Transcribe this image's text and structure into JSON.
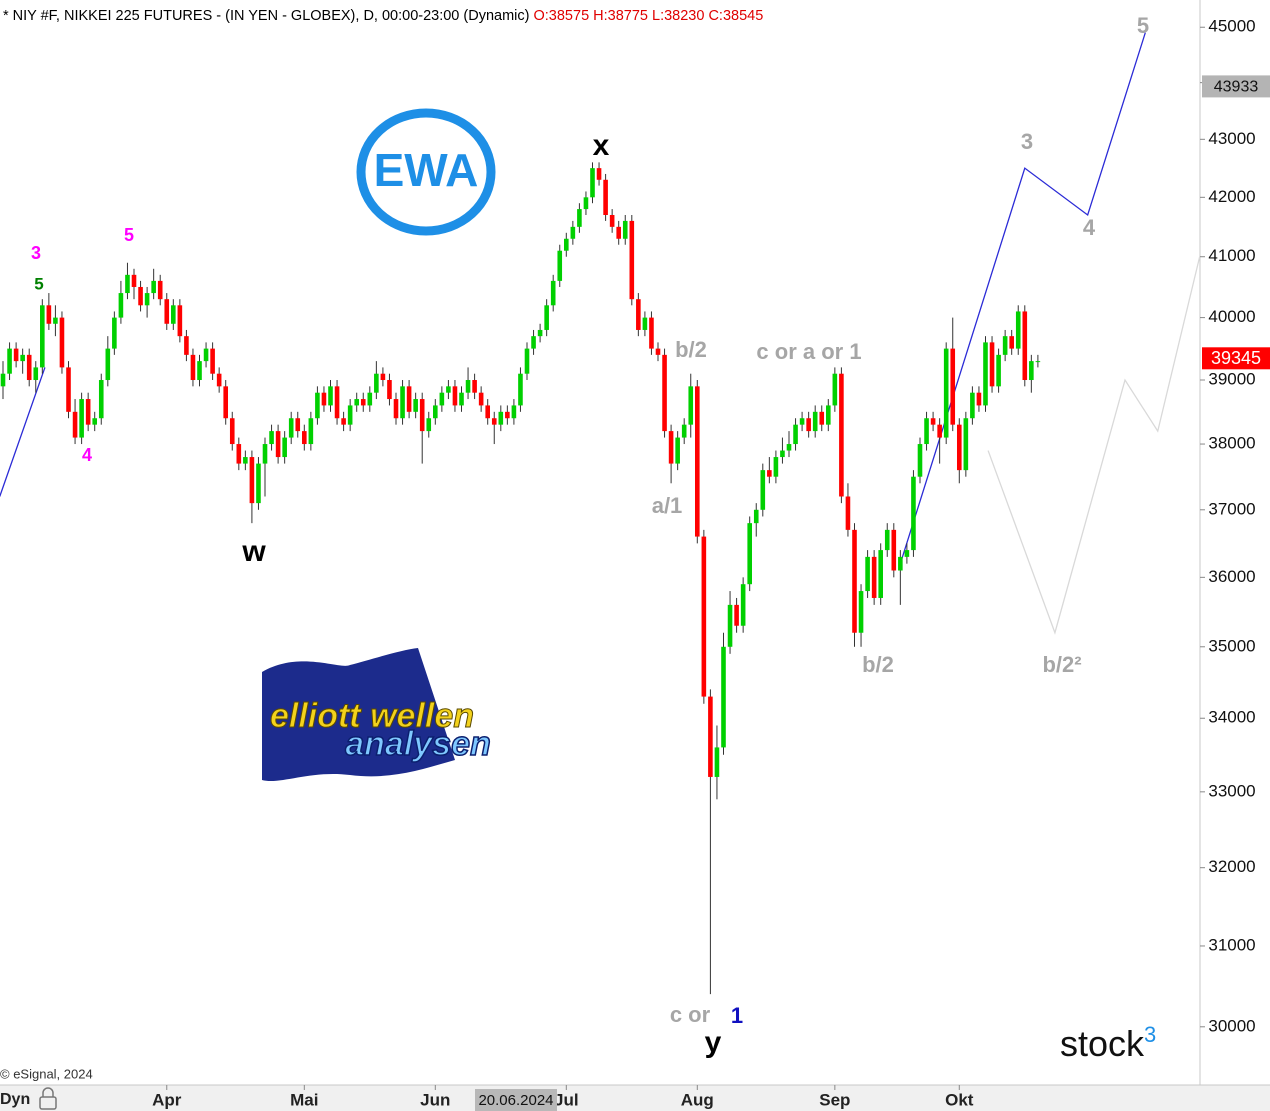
{
  "chart_data": {
    "type": "candlestick",
    "header": "* NIY #F, NIKKEI 225 FUTURES - (IN YEN - GLOBEX), D, 00:00-23:00 (Dynamic)",
    "ohlc_text": "O:38575 H:38775 L:38230 C:38545",
    "log_scale": true,
    "up_color": "#00d000",
    "down_color": "#ff0000",
    "ylim": [
      29300,
      45500
    ],
    "yticks": [
      30000,
      31000,
      32000,
      33000,
      34000,
      35000,
      36000,
      37000,
      38000,
      39000,
      40000,
      41000,
      42000,
      43000,
      44000,
      45000
    ],
    "xlim": [
      -0.46,
      182.75
    ],
    "xticks": [
      {
        "value": 25,
        "label": "Apr"
      },
      {
        "value": 46,
        "label": "Mai"
      },
      {
        "value": 66,
        "label": "Jun"
      },
      {
        "value": 86,
        "label": "Jul"
      },
      {
        "value": 106,
        "label": "Aug"
      },
      {
        "value": 127,
        "label": "Sep"
      },
      {
        "value": 146,
        "label": "Okt"
      }
    ],
    "cursor_label": "20.06.2024",
    "price_markers": [
      {
        "value": 43933,
        "color": "#b4b4b4"
      },
      {
        "value": 39345,
        "color": "#ff0000"
      }
    ],
    "candles": [
      [
        38900,
        39300,
        38700,
        39100
      ],
      [
        39100,
        39600,
        39000,
        39500
      ],
      [
        39500,
        39600,
        39200,
        39300
      ],
      [
        39300,
        39500,
        39100,
        39400
      ],
      [
        39400,
        39500,
        38900,
        39000
      ],
      [
        39000,
        39300,
        38800,
        39200
      ],
      [
        39200,
        40300,
        39100,
        40200
      ],
      [
        40200,
        40400,
        39800,
        39900
      ],
      [
        39900,
        40200,
        39700,
        40000
      ],
      [
        40000,
        40100,
        39100,
        39200
      ],
      [
        39200,
        39300,
        38400,
        38500
      ],
      [
        38500,
        38700,
        38000,
        38100
      ],
      [
        38100,
        38800,
        38000,
        38700
      ],
      [
        38700,
        38800,
        38200,
        38300
      ],
      [
        38300,
        38500,
        38200,
        38400
      ],
      [
        38400,
        39100,
        38300,
        39000
      ],
      [
        39000,
        39700,
        38900,
        39500
      ],
      [
        39500,
        40100,
        39400,
        40000
      ],
      [
        40000,
        40600,
        39900,
        40400
      ],
      [
        40400,
        40900,
        40300,
        40700
      ],
      [
        40700,
        40800,
        40300,
        40500
      ],
      [
        40500,
        40600,
        40100,
        40200
      ],
      [
        40200,
        40500,
        40000,
        40400
      ],
      [
        40400,
        40800,
        40300,
        40600
      ],
      [
        40600,
        40700,
        40200,
        40300
      ],
      [
        40300,
        40400,
        39800,
        39900
      ],
      [
        39900,
        40300,
        39800,
        40200
      ],
      [
        40200,
        40300,
        39600,
        39700
      ],
      [
        39700,
        39800,
        39300,
        39400
      ],
      [
        39400,
        39500,
        38900,
        39000
      ],
      [
        39000,
        39400,
        38900,
        39300
      ],
      [
        39300,
        39600,
        39200,
        39500
      ],
      [
        39500,
        39600,
        39000,
        39100
      ],
      [
        39100,
        39200,
        38800,
        38900
      ],
      [
        38900,
        39000,
        38300,
        38400
      ],
      [
        38400,
        38500,
        37900,
        38000
      ],
      [
        38000,
        38100,
        37600,
        37700
      ],
      [
        37700,
        37900,
        37600,
        37800
      ],
      [
        37800,
        37900,
        36800,
        37100
      ],
      [
        37100,
        37800,
        37000,
        37700
      ],
      [
        37700,
        38100,
        37200,
        38000
      ],
      [
        38000,
        38300,
        37900,
        38200
      ],
      [
        38200,
        38300,
        37700,
        37800
      ],
      [
        37800,
        38200,
        37700,
        38100
      ],
      [
        38100,
        38500,
        38000,
        38400
      ],
      [
        38400,
        38500,
        38100,
        38200
      ],
      [
        38200,
        38300,
        37900,
        38000
      ],
      [
        38000,
        38500,
        37900,
        38400
      ],
      [
        38400,
        38900,
        38300,
        38800
      ],
      [
        38800,
        38900,
        38500,
        38600
      ],
      [
        38600,
        39000,
        38500,
        38900
      ],
      [
        38900,
        39000,
        38300,
        38400
      ],
      [
        38400,
        38500,
        38200,
        38300
      ],
      [
        38300,
        38700,
        38200,
        38600
      ],
      [
        38600,
        38800,
        38500,
        38700
      ],
      [
        38700,
        38800,
        38500,
        38600
      ],
      [
        38600,
        38900,
        38500,
        38800
      ],
      [
        38800,
        39300,
        38700,
        39100
      ],
      [
        39100,
        39200,
        38900,
        39000
      ],
      [
        39000,
        39100,
        38600,
        38700
      ],
      [
        38700,
        38800,
        38300,
        38400
      ],
      [
        38400,
        39000,
        38300,
        38900
      ],
      [
        38900,
        39000,
        38400,
        38500
      ],
      [
        38500,
        38800,
        38400,
        38700
      ],
      [
        38700,
        38800,
        37700,
        38200
      ],
      [
        38200,
        38500,
        38100,
        38400
      ],
      [
        38400,
        38700,
        38300,
        38600
      ],
      [
        38600,
        38900,
        38500,
        38800
      ],
      [
        38800,
        39000,
        38700,
        38900
      ],
      [
        38900,
        39000,
        38500,
        38600
      ],
      [
        38600,
        38900,
        38500,
        38800
      ],
      [
        38800,
        39200,
        38700,
        39000
      ],
      [
        39000,
        39100,
        38700,
        38800
      ],
      [
        38800,
        38900,
        38500,
        38600
      ],
      [
        38600,
        38700,
        38300,
        38400
      ],
      [
        38400,
        38500,
        38000,
        38300
      ],
      [
        38300,
        38600,
        38200,
        38500
      ],
      [
        38500,
        38600,
        38300,
        38400
      ],
      [
        38400,
        38700,
        38300,
        38600
      ],
      [
        38600,
        39200,
        38500,
        39100
      ],
      [
        39100,
        39600,
        39000,
        39500
      ],
      [
        39500,
        39800,
        39400,
        39700
      ],
      [
        39700,
        39900,
        39600,
        39800
      ],
      [
        39800,
        40300,
        39700,
        40200
      ],
      [
        40200,
        40700,
        40100,
        40600
      ],
      [
        40600,
        41200,
        40500,
        41100
      ],
      [
        41100,
        41400,
        41000,
        41300
      ],
      [
        41300,
        41600,
        41200,
        41500
      ],
      [
        41500,
        41900,
        41400,
        41800
      ],
      [
        41800,
        42100,
        41700,
        42000
      ],
      [
        42000,
        42600,
        41900,
        42500
      ],
      [
        42500,
        42600,
        42200,
        42300
      ],
      [
        42300,
        42400,
        41600,
        41700
      ],
      [
        41700,
        41800,
        41400,
        41500
      ],
      [
        41500,
        41600,
        41200,
        41300
      ],
      [
        41300,
        41700,
        41200,
        41600
      ],
      [
        41600,
        41700,
        40200,
        40300
      ],
      [
        40300,
        40400,
        39700,
        39800
      ],
      [
        39800,
        40100,
        39700,
        40000
      ],
      [
        40000,
        40100,
        39400,
        39500
      ],
      [
        39500,
        39600,
        39300,
        39400
      ],
      [
        39400,
        39500,
        38100,
        38200
      ],
      [
        38200,
        38300,
        37400,
        37700
      ],
      [
        37700,
        38200,
        37600,
        38100
      ],
      [
        38100,
        38400,
        38000,
        38300
      ],
      [
        38300,
        39100,
        38100,
        38900
      ],
      [
        38900,
        39000,
        36500,
        36600
      ],
      [
        36600,
        36700,
        34200,
        34300
      ],
      [
        34300,
        34400,
        30400,
        33200
      ],
      [
        33200,
        33900,
        32900,
        33600
      ],
      [
        33600,
        35200,
        33500,
        35000
      ],
      [
        35000,
        35800,
        34900,
        35600
      ],
      [
        35600,
        35700,
        35200,
        35300
      ],
      [
        35300,
        36000,
        35200,
        35900
      ],
      [
        35900,
        36900,
        35800,
        36800
      ],
      [
        36800,
        37100,
        36600,
        37000
      ],
      [
        37000,
        37700,
        36900,
        37600
      ],
      [
        37600,
        37800,
        37400,
        37500
      ],
      [
        37500,
        37900,
        37400,
        37800
      ],
      [
        37800,
        38100,
        37700,
        37900
      ],
      [
        37900,
        38200,
        37800,
        38000
      ],
      [
        38000,
        38400,
        37900,
        38300
      ],
      [
        38300,
        38500,
        38200,
        38400
      ],
      [
        38400,
        38500,
        38100,
        38200
      ],
      [
        38200,
        38600,
        38100,
        38500
      ],
      [
        38500,
        38600,
        38200,
        38300
      ],
      [
        38300,
        38700,
        38200,
        38600
      ],
      [
        38600,
        39200,
        38500,
        39100
      ],
      [
        39100,
        39200,
        37100,
        37200
      ],
      [
        37200,
        37400,
        36600,
        36700
      ],
      [
        36700,
        36800,
        35000,
        35200
      ],
      [
        35200,
        35900,
        35000,
        35800
      ],
      [
        35800,
        36400,
        35700,
        36300
      ],
      [
        36300,
        36400,
        35600,
        35700
      ],
      [
        35700,
        36500,
        35600,
        36400
      ],
      [
        36400,
        36800,
        36300,
        36700
      ],
      [
        36700,
        36800,
        36000,
        36100
      ],
      [
        36100,
        36400,
        35600,
        36300
      ],
      [
        36300,
        36500,
        36200,
        36400
      ],
      [
        36400,
        37600,
        36300,
        37500
      ],
      [
        37500,
        38100,
        37400,
        38000
      ],
      [
        38000,
        38500,
        37900,
        38400
      ],
      [
        38400,
        38500,
        38200,
        38300
      ],
      [
        38300,
        38400,
        37700,
        38100
      ],
      [
        38100,
        39600,
        38000,
        39500
      ],
      [
        39500,
        40000,
        38200,
        38300
      ],
      [
        38300,
        38400,
        37400,
        37600
      ],
      [
        37600,
        38500,
        37500,
        38400
      ],
      [
        38400,
        38900,
        38300,
        38800
      ],
      [
        38800,
        38900,
        38500,
        38600
      ],
      [
        38600,
        39700,
        38500,
        39600
      ],
      [
        39600,
        39700,
        38800,
        38900
      ],
      [
        38900,
        39500,
        38800,
        39400
      ],
      [
        39400,
        39800,
        39300,
        39700
      ],
      [
        39700,
        39800,
        39400,
        39500
      ],
      [
        39500,
        40200,
        39400,
        40100
      ],
      [
        40100,
        40200,
        38900,
        39000
      ],
      [
        39000,
        39400,
        38800,
        39300
      ],
      [
        39300,
        39400,
        39200,
        39300
      ]
    ],
    "projections": [
      {
        "color": "#2b2bd6",
        "x": [
          -0.5,
          6.4
        ],
        "y": [
          37200,
          39200
        ]
      },
      {
        "color": "#2b2bd6",
        "x": [
          137,
          156,
          165.6,
          174.4
        ],
        "y": [
          36200,
          42500,
          41700,
          44900
        ]
      },
      {
        "color": "#d9d9d9",
        "x": [
          150.4,
          160.6,
          171.3,
          176.3,
          182.7
        ],
        "y": [
          37900,
          35200,
          39000,
          38200,
          41000
        ]
      }
    ],
    "wave_labels": [
      "3",
      "5",
      "5",
      "4",
      "w",
      "x",
      "b/2",
      "a/1",
      "c or a or 1",
      "c or",
      "1",
      "y",
      "b/2",
      "b/2²",
      "3",
      "4",
      "5"
    ],
    "logo_ewa": "EWA",
    "logo_ewa2": [
      "elliott wellen",
      "analysen"
    ],
    "brand": [
      "stock",
      "3"
    ],
    "copyright": "© eSignal, 2024",
    "dyn": "Dyn"
  }
}
